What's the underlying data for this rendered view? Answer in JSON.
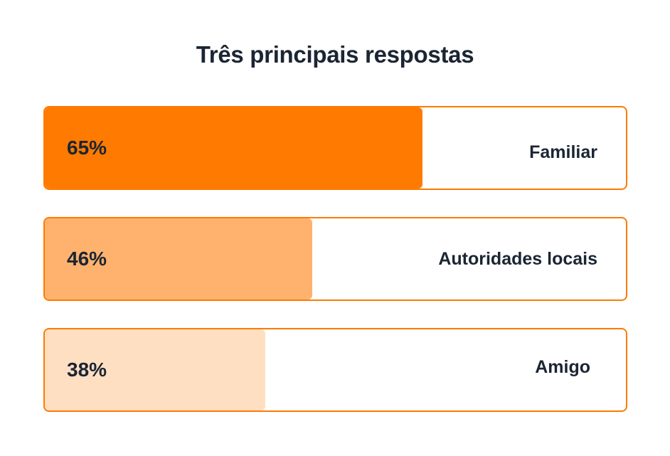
{
  "chart_data": {
    "type": "bar",
    "title": "Três principais respostas",
    "categories": [
      "Familiar",
      "Autoridades locais",
      "Amigo"
    ],
    "values": [
      65,
      46,
      38
    ],
    "value_labels": [
      "65%",
      "46%",
      "38%"
    ],
    "ylim": [
      0,
      100
    ],
    "colors": [
      "#ff7a00",
      "#ffb26e",
      "#ffdfc2"
    ],
    "border_color": "#ff7a00"
  }
}
